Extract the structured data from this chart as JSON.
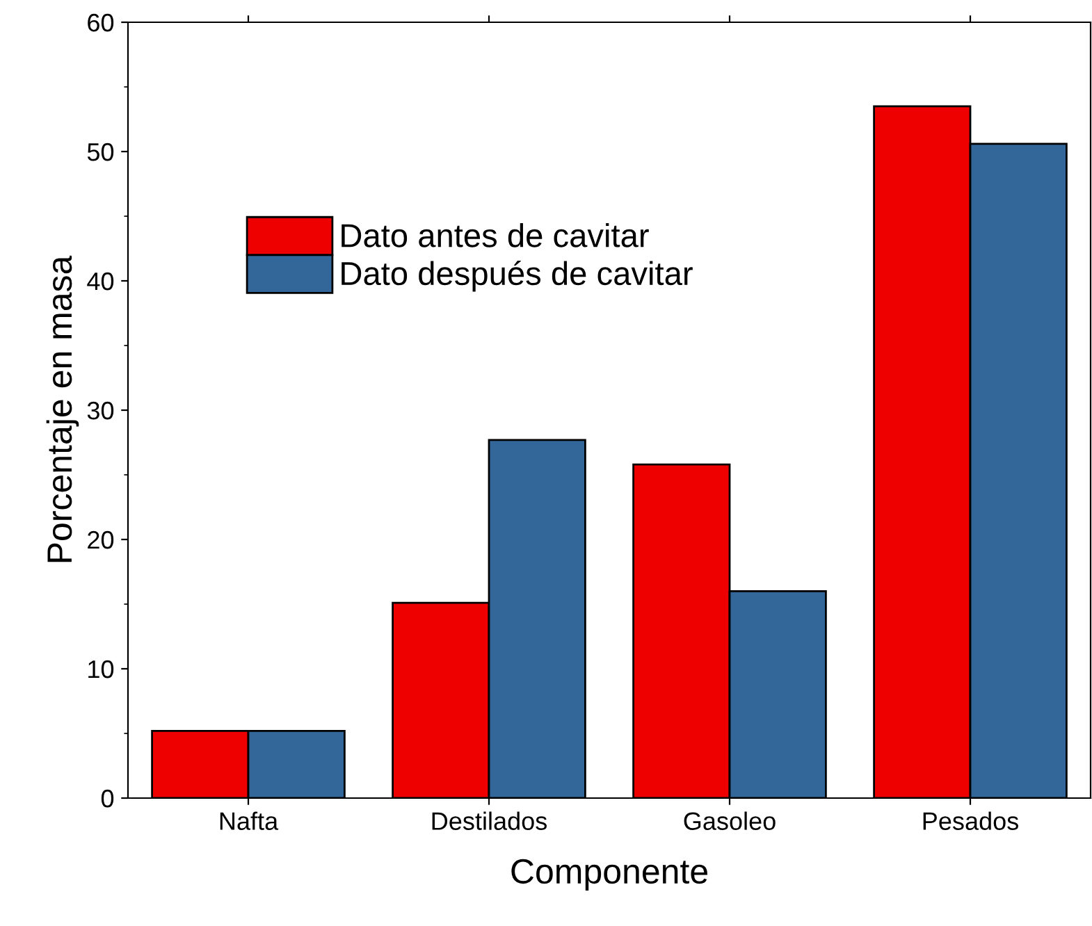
{
  "chart_data": {
    "type": "bar",
    "xlabel": "Componente",
    "ylabel": "Porcentaje en masa",
    "categories": [
      "Nafta",
      "Destilados",
      "Gasoleo",
      "Pesados"
    ],
    "series": [
      {
        "name": "Dato antes de cavitar",
        "color": "#ee0000",
        "values": [
          5.2,
          15.1,
          25.8,
          53.5
        ]
      },
      {
        "name": "Dato después de cavitar",
        "color": "#336699",
        "values": [
          5.2,
          27.7,
          16.0,
          50.6
        ]
      }
    ],
    "ylim": [
      0,
      60
    ],
    "yticks": [
      0,
      10,
      20,
      30,
      40,
      50,
      60
    ],
    "grid": false,
    "legend": "left"
  }
}
